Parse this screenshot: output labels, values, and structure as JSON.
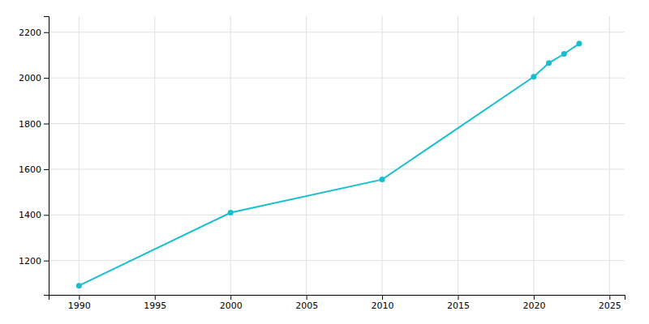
{
  "chart_data": {
    "type": "line",
    "x": [
      1990,
      2000,
      2010,
      2020,
      2021,
      2022,
      2023
    ],
    "values": [
      1090,
      1410,
      1555,
      2005,
      2065,
      2105,
      2150
    ],
    "color": "#17becf",
    "marker": "circle",
    "xlim": [
      1988,
      2026
    ],
    "ylim": [
      1050,
      2270
    ],
    "xticks": [
      1990,
      1995,
      2000,
      2005,
      2010,
      2015,
      2020,
      2025
    ],
    "yticks": [
      1200,
      1400,
      1600,
      1800,
      2000,
      2200
    ],
    "grid": true
  }
}
